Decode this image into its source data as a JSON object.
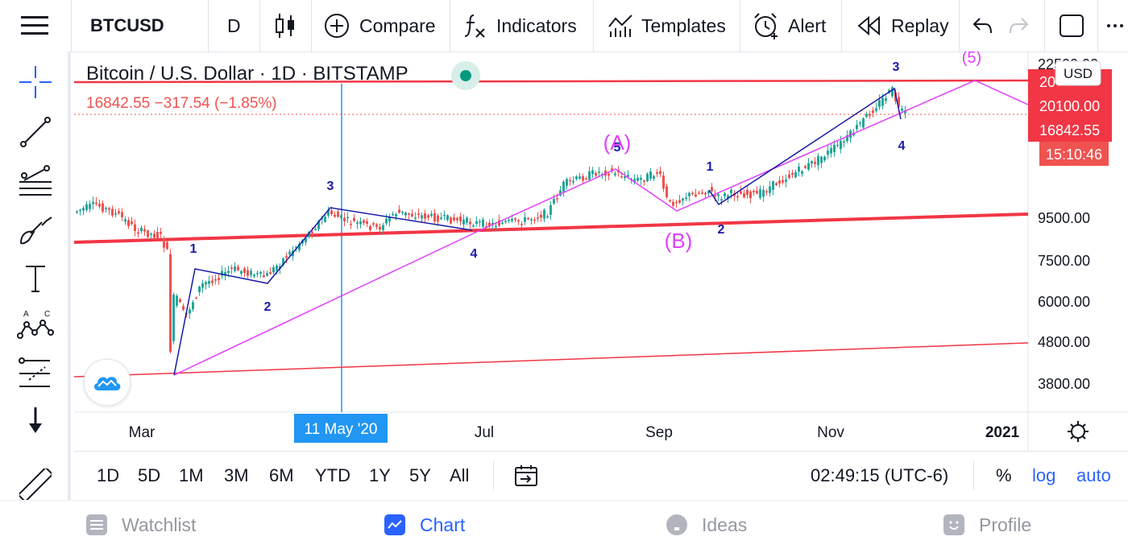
{
  "toolbar": {
    "symbol": "BTCUSD",
    "interval": "D",
    "compare": "Compare",
    "indicators": "Indicators",
    "templates": "Templates",
    "alert": "Alert",
    "replay": "Replay"
  },
  "legend": {
    "title": "Bitcoin / U.S. Dollar · 1D · BITSTAMP",
    "values": "16842.55  −317.54 (−1.85%)"
  },
  "price_axis": {
    "currency": "USD",
    "ticks": [
      "22500.00",
      "9500.00",
      "7500.00",
      "6000.00",
      "4800.00",
      "3800.00"
    ],
    "tags": [
      {
        "text": "20100.00",
        "color": "#f23645"
      },
      {
        "text": "16842.55",
        "color": "#f23645"
      },
      {
        "text": "15:10:46",
        "color": "#ef5350"
      }
    ],
    "tag_partial": "20"
  },
  "time_axis": {
    "labels": [
      "Mar",
      "Jul",
      "Sep",
      "Nov",
      "2021"
    ],
    "crosshair_label": "11 May '20"
  },
  "wave_labels": {
    "w1": "1",
    "w2": "2",
    "w3": "3",
    "w4": "4",
    "b1": "1",
    "b2": "2",
    "c3": "3",
    "c4": "4",
    "c5": "5",
    "A": "(A)",
    "B": "(B)",
    "five": "(5)"
  },
  "ranges": [
    "1D",
    "5D",
    "1M",
    "3M",
    "6M",
    "YTD",
    "1Y",
    "5Y",
    "All"
  ],
  "status": {
    "time": "02:49:15 (UTC-6)",
    "percent": "%",
    "log": "log",
    "auto": "auto"
  },
  "nav": {
    "watchlist": "Watchlist",
    "chart": "Chart",
    "ideas": "Ideas",
    "profile": "Profile"
  },
  "colors": {
    "accent": "#2962ff",
    "up": "#26a69a",
    "down": "#ef5350",
    "trendline": "#f23645",
    "wave_blue": "#1a1aa8",
    "wave_magenta": "#e040fb"
  }
}
